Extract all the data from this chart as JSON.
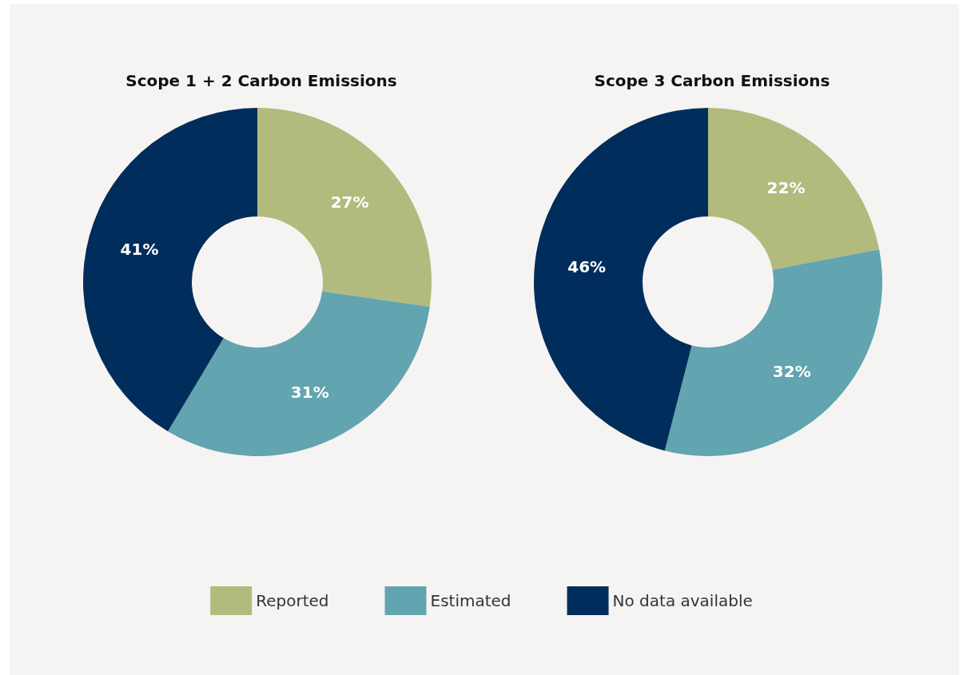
{
  "chart_data": [
    {
      "type": "donut",
      "title": "Scope 1 + 2 Carbon Emissions",
      "categories": [
        null,
        null,
        null
      ],
      "values": [
        27,
        31,
        41
      ],
      "colors": [
        "#b2ba7e",
        "#62a4b0",
        "#002d5c"
      ],
      "value_labels": [
        "27%",
        "31%",
        "41%"
      ]
    },
    {
      "type": "donut",
      "title": "Scope 3 Carbon Emissions",
      "categories": [
        "Reported",
        "Estimated",
        "No data available"
      ],
      "values": [
        22,
        32,
        46
      ],
      "colors": [
        "#b2ba7e",
        "#62a4b0",
        "#002d5c"
      ],
      "value_labels": [
        "22%",
        "32%",
        "46%"
      ],
      "legend": "bottom"
    }
  ]
}
